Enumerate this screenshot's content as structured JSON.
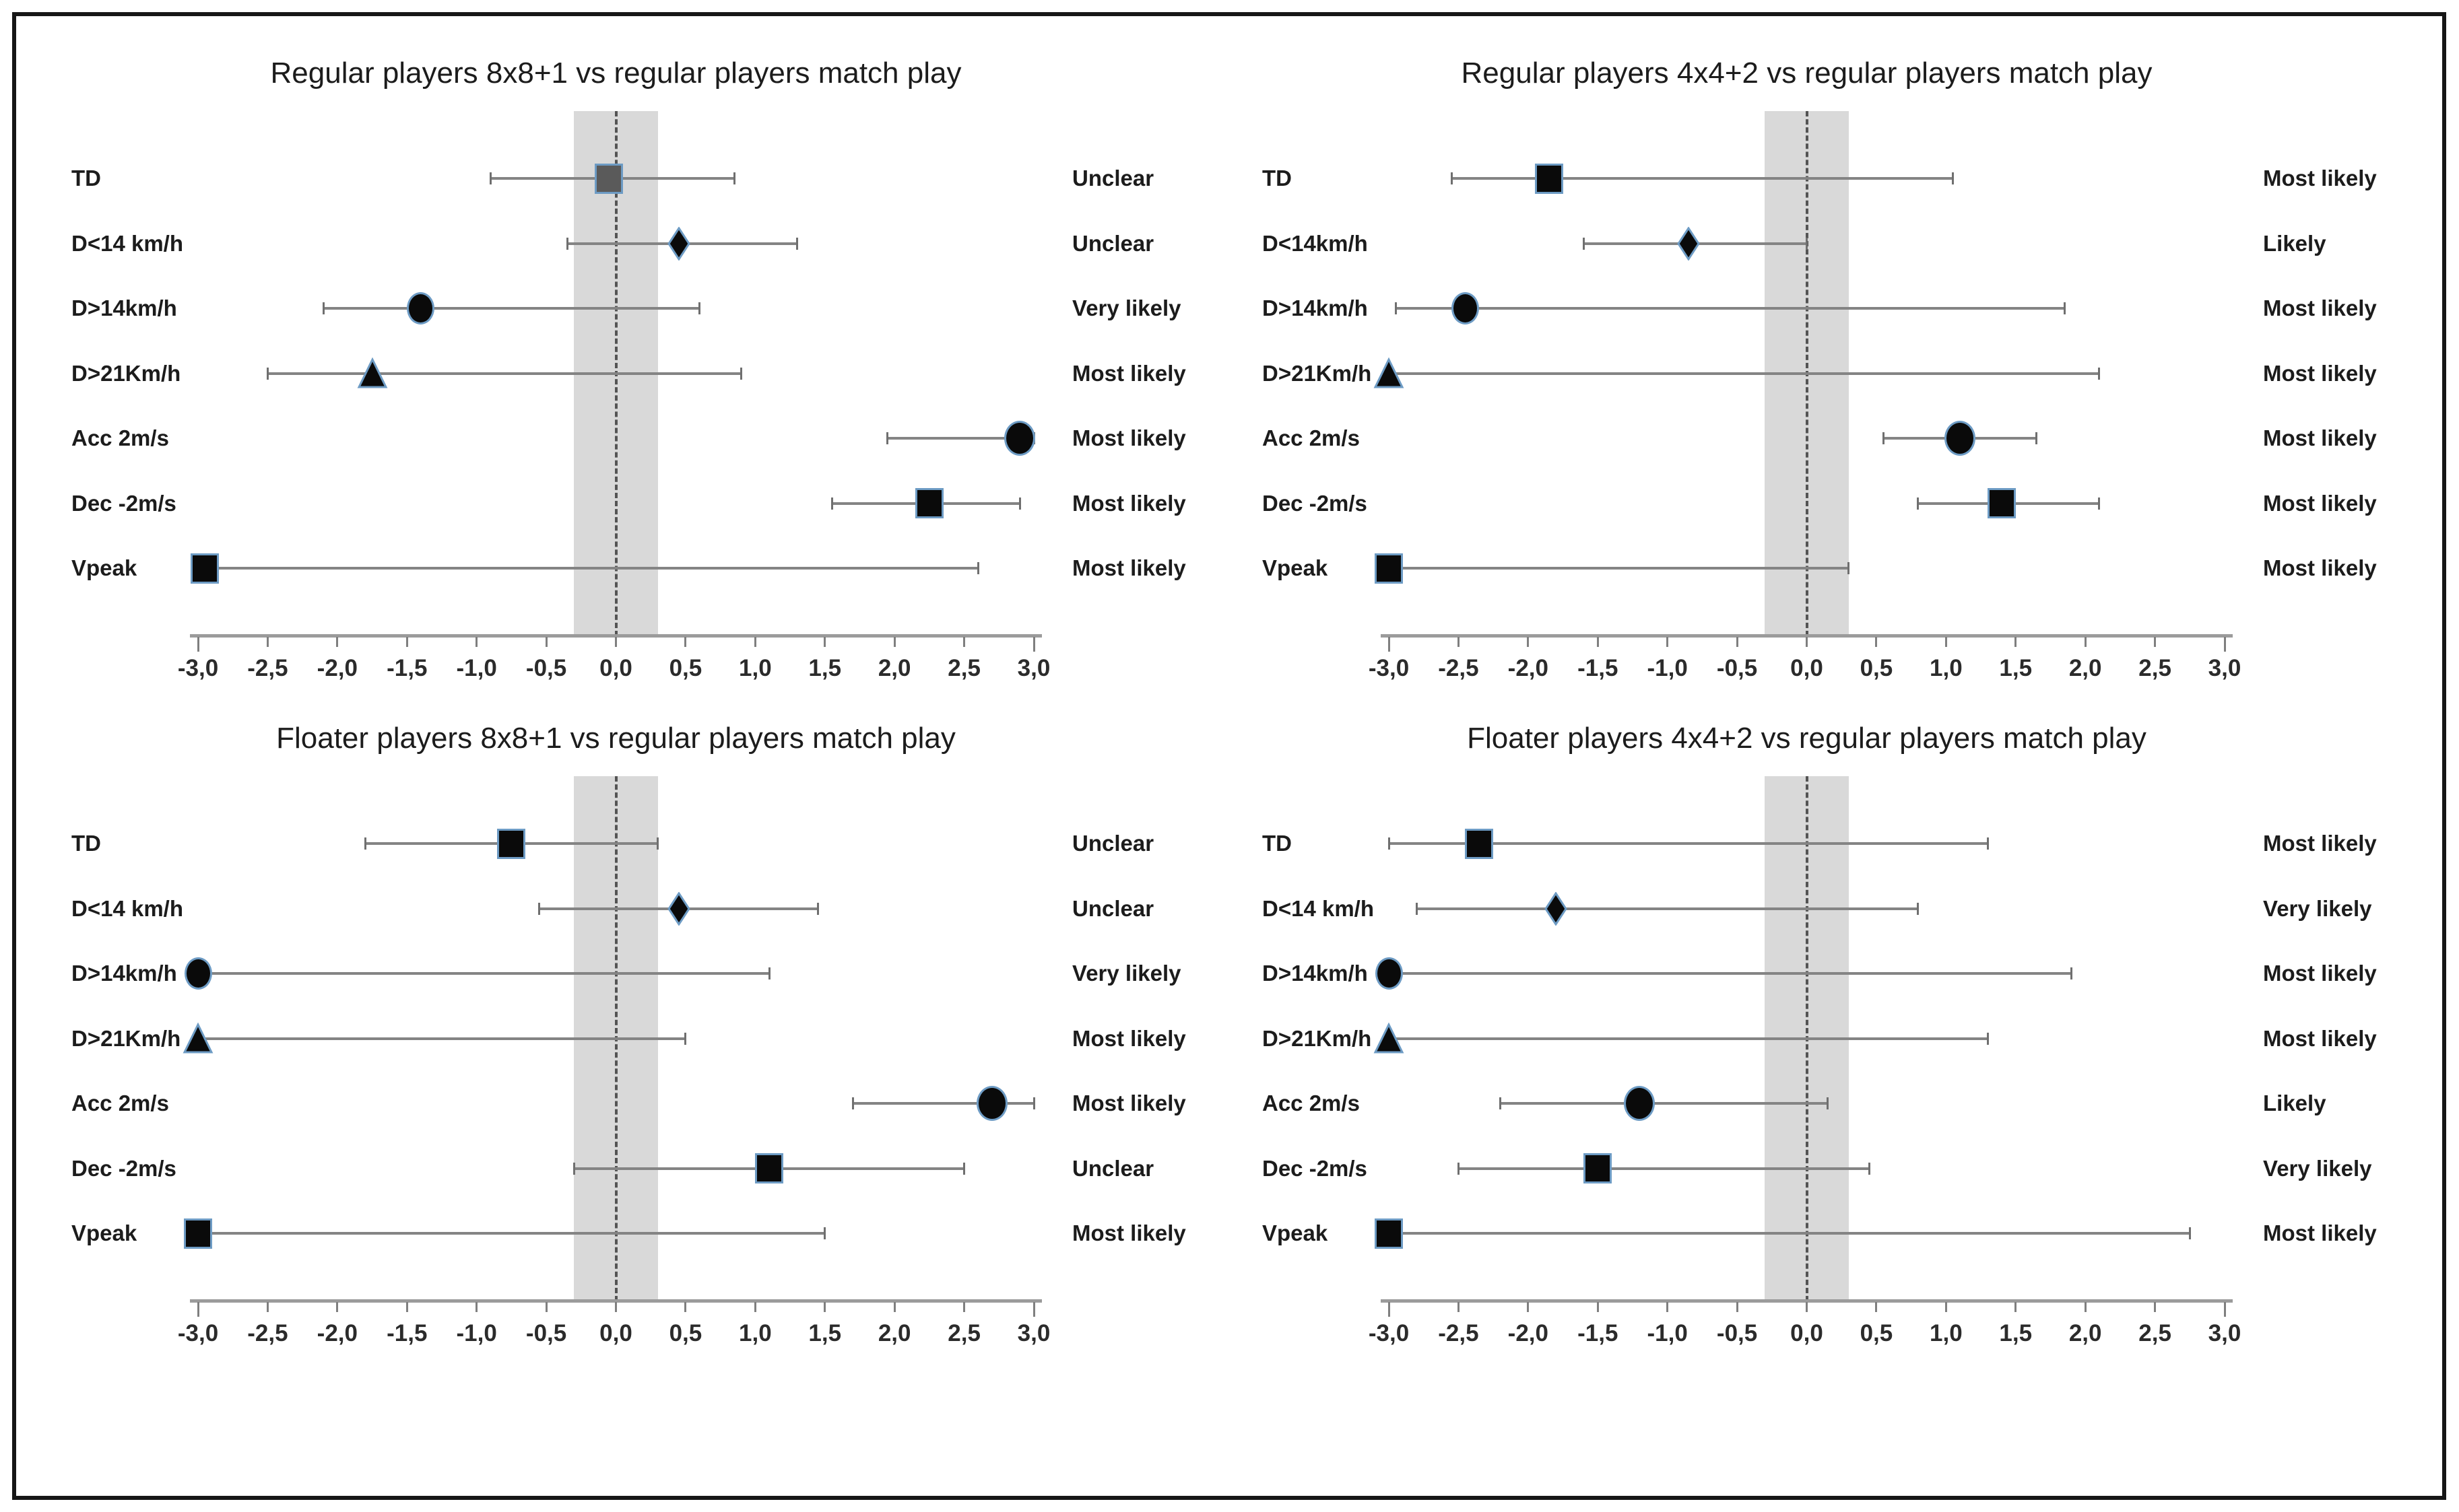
{
  "figure": {
    "background": "#ffffff",
    "border_color": "#161616"
  },
  "colors": {
    "trivial_band": "#d9d9d9",
    "zero_dash_line": "#545454",
    "error_bar": "#848484",
    "axis_line": "#9b9b9b",
    "marker_fill": "#0a0a0a",
    "marker_fill_neutral_gray": "#5a5a5a",
    "marker_edge_blue": "#6d9bc4",
    "text": "#1c1c1c"
  },
  "chart_data": [
    {
      "type": "scatter",
      "title": "Regular players 8x8+1 vs regular players match play",
      "xlim": [
        -3.0,
        3.0
      ],
      "xtick_labels": [
        "-3,0",
        "-2,5",
        "-2,0",
        "-1,5",
        "-1,0",
        "-0,5",
        "0,0",
        "0,5",
        "1,0",
        "1,5",
        "2,0",
        "2,5",
        "3,0"
      ],
      "trivial_band": [
        -0.3,
        0.3
      ],
      "zero_line": 0,
      "grid": false,
      "rows": [
        {
          "label": "TD",
          "marker": "square",
          "fill": "gray",
          "value": -0.05,
          "ci": [
            -0.9,
            0.85
          ],
          "likelihood": "Unclear"
        },
        {
          "label": "D<14 km/h",
          "marker": "diamond",
          "fill": "black",
          "value": 0.45,
          "ci": [
            -0.35,
            1.3
          ],
          "likelihood": "Unclear"
        },
        {
          "label": "D>14km/h",
          "marker": "circle",
          "fill": "black",
          "value": -1.4,
          "ci": [
            -2.1,
            0.6
          ],
          "likelihood": "Very likely"
        },
        {
          "label": "D>21Km/h",
          "marker": "triangle",
          "fill": "black",
          "value": -1.75,
          "ci": [
            -2.5,
            0.9
          ],
          "likelihood": "Most likely"
        },
        {
          "label": "Acc 2m/s",
          "marker": "circle-lg",
          "fill": "black",
          "value": 2.9,
          "ci": [
            1.95,
            3.0
          ],
          "likelihood": "Most likely"
        },
        {
          "label": "Dec -2m/s",
          "marker": "square",
          "fill": "black",
          "value": 2.25,
          "ci": [
            1.55,
            2.9
          ],
          "likelihood": "Most likely"
        },
        {
          "label": "Vpeak",
          "marker": "square",
          "fill": "black",
          "value": -2.95,
          "ci": [
            -2.95,
            2.6
          ],
          "likelihood": "Most likely"
        }
      ]
    },
    {
      "type": "scatter",
      "title": "Regular players 4x4+2 vs regular players match play",
      "xlim": [
        -3.0,
        3.0
      ],
      "xtick_labels": [
        "-3,0",
        "-2,5",
        "-2,0",
        "-1,5",
        "-1,0",
        "-0,5",
        "0,0",
        "0,5",
        "1,0",
        "1,5",
        "2,0",
        "2,5",
        "3,0"
      ],
      "trivial_band": [
        -0.3,
        0.3
      ],
      "zero_line": 0,
      "grid": false,
      "rows": [
        {
          "label": "TD",
          "marker": "square",
          "fill": "black",
          "value": -1.85,
          "ci": [
            -2.55,
            1.05
          ],
          "likelihood": "Most likely"
        },
        {
          "label": "D<14km/h",
          "marker": "diamond",
          "fill": "black",
          "value": -0.85,
          "ci": [
            -1.6,
            0.0
          ],
          "likelihood": "Likely"
        },
        {
          "label": "D>14km/h",
          "marker": "circle",
          "fill": "black",
          "value": -2.45,
          "ci": [
            -2.95,
            1.85
          ],
          "likelihood": "Most likely"
        },
        {
          "label": "D>21Km/h",
          "marker": "triangle",
          "fill": "black",
          "value": -3.0,
          "ci": [
            -3.0,
            2.1
          ],
          "likelihood": "Most likely"
        },
        {
          "label": "Acc 2m/s",
          "marker": "circle-lg",
          "fill": "black",
          "value": 1.1,
          "ci": [
            0.55,
            1.65
          ],
          "likelihood": "Most likely"
        },
        {
          "label": "Dec -2m/s",
          "marker": "square",
          "fill": "black",
          "value": 1.4,
          "ci": [
            0.8,
            2.1
          ],
          "likelihood": "Most likely"
        },
        {
          "label": "Vpeak",
          "marker": "square",
          "fill": "black",
          "value": -3.0,
          "ci": [
            -3.0,
            0.3
          ],
          "likelihood": "Most likely"
        }
      ]
    },
    {
      "type": "scatter",
      "title": "Floater players 8x8+1 vs regular players match play",
      "xlim": [
        -3.0,
        3.0
      ],
      "xtick_labels": [
        "-3,0",
        "-2,5",
        "-2,0",
        "-1,5",
        "-1,0",
        "-0,5",
        "0,0",
        "0,5",
        "1,0",
        "1,5",
        "2,0",
        "2,5",
        "3,0"
      ],
      "trivial_band": [
        -0.3,
        0.3
      ],
      "zero_line": 0,
      "grid": false,
      "rows": [
        {
          "label": "TD",
          "marker": "square",
          "fill": "black",
          "value": -0.75,
          "ci": [
            -1.8,
            0.3
          ],
          "likelihood": "Unclear"
        },
        {
          "label": "D<14 km/h",
          "marker": "diamond",
          "fill": "black",
          "value": 0.45,
          "ci": [
            -0.55,
            1.45
          ],
          "likelihood": "Unclear"
        },
        {
          "label": "D>14km/h",
          "marker": "circle",
          "fill": "black",
          "value": -3.0,
          "ci": [
            -3.0,
            1.1
          ],
          "likelihood": "Very likely"
        },
        {
          "label": "D>21Km/h",
          "marker": "triangle",
          "fill": "black",
          "value": -3.0,
          "ci": [
            -3.0,
            0.5
          ],
          "likelihood": "Most likely"
        },
        {
          "label": "Acc 2m/s",
          "marker": "circle-lg",
          "fill": "black",
          "value": 2.7,
          "ci": [
            1.7,
            3.0
          ],
          "likelihood": "Most likely"
        },
        {
          "label": "Dec -2m/s",
          "marker": "square",
          "fill": "black",
          "value": 1.1,
          "ci": [
            -0.3,
            2.5
          ],
          "likelihood": "Unclear"
        },
        {
          "label": "Vpeak",
          "marker": "square",
          "fill": "black",
          "value": -3.0,
          "ci": [
            -3.0,
            1.5
          ],
          "likelihood": "Most likely"
        }
      ]
    },
    {
      "type": "scatter",
      "title": "Floater players 4x4+2 vs regular players match play",
      "xlim": [
        -3.0,
        3.0
      ],
      "xtick_labels": [
        "-3,0",
        "-2,5",
        "-2,0",
        "-1,5",
        "-1,0",
        "-0,5",
        "0,0",
        "0,5",
        "1,0",
        "1,5",
        "2,0",
        "2,5",
        "3,0"
      ],
      "trivial_band": [
        -0.3,
        0.3
      ],
      "zero_line": 0,
      "grid": false,
      "rows": [
        {
          "label": "TD",
          "marker": "square",
          "fill": "black",
          "value": -2.35,
          "ci": [
            -3.0,
            1.3
          ],
          "likelihood": "Most likely"
        },
        {
          "label": "D<14 km/h",
          "marker": "diamond",
          "fill": "black",
          "value": -1.8,
          "ci": [
            -2.8,
            0.8
          ],
          "likelihood": "Very likely"
        },
        {
          "label": "D>14km/h",
          "marker": "circle",
          "fill": "black",
          "value": -3.0,
          "ci": [
            -3.0,
            1.9
          ],
          "likelihood": "Most likely"
        },
        {
          "label": "D>21Km/h",
          "marker": "triangle",
          "fill": "black",
          "value": -3.0,
          "ci": [
            -3.0,
            1.3
          ],
          "likelihood": "Most likely"
        },
        {
          "label": "Acc 2m/s",
          "marker": "circle-lg",
          "fill": "black",
          "value": -1.2,
          "ci": [
            -2.2,
            0.15
          ],
          "likelihood": "Likely"
        },
        {
          "label": "Dec -2m/s",
          "marker": "square",
          "fill": "black",
          "value": -1.5,
          "ci": [
            -2.5,
            0.45
          ],
          "likelihood": "Very likely"
        },
        {
          "label": "Vpeak",
          "marker": "square",
          "fill": "black",
          "value": -3.0,
          "ci": [
            -3.0,
            2.75
          ],
          "likelihood": "Most likely"
        }
      ]
    }
  ]
}
